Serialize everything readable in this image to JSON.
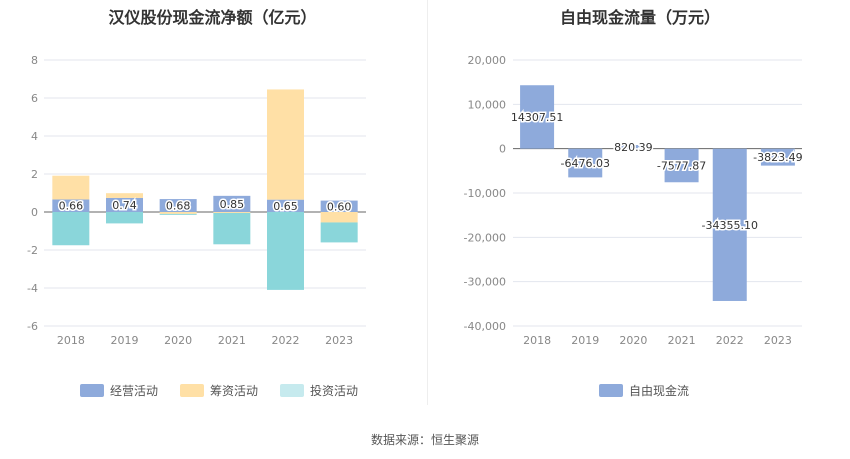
{
  "titles": {
    "left": "汉仪股份现金流净额（亿元）",
    "right": "自由现金流量（万元）"
  },
  "source": "数据来源：恒生聚源",
  "chart_data": [
    {
      "type": "bar",
      "stacked": true,
      "title": "汉仪股份现金流净额（亿元）",
      "categories": [
        "2018",
        "2019",
        "2020",
        "2021",
        "2022",
        "2023"
      ],
      "ylim": [
        -6,
        8
      ],
      "yticks": [
        -6,
        -4,
        -2,
        0,
        2,
        4,
        6,
        8
      ],
      "ytick_labels": [
        "-6",
        "-4",
        "-2",
        "0",
        "2",
        "4",
        "6",
        "8"
      ],
      "grid": true,
      "legend_position": "bottom",
      "series": [
        {
          "name": "经营活动",
          "color": "#8eaadb",
          "values": [
            0.66,
            0.74,
            0.68,
            0.85,
            0.65,
            0.6
          ],
          "labels": [
            "0.66",
            "0.74",
            "0.68",
            "0.85",
            "0.65",
            "0.60"
          ]
        },
        {
          "name": "筹资活动",
          "color": "#ffe0a6",
          "values": [
            1.25,
            0.25,
            -0.1,
            -0.05,
            5.8,
            -0.55
          ]
        },
        {
          "name": "投资活动",
          "color": "#8ad6da",
          "values": [
            -1.75,
            -0.6,
            -0.05,
            -1.65,
            -4.1,
            -1.05
          ]
        }
      ],
      "legend_swatches": [
        "#8eaadb",
        "#ffe0a6",
        "#c6eaee"
      ]
    },
    {
      "type": "bar",
      "title": "自由现金流量（万元）",
      "categories": [
        "2018",
        "2019",
        "2020",
        "2021",
        "2022",
        "2023"
      ],
      "ylim": [
        -40000,
        20000
      ],
      "yticks": [
        -40000,
        -30000,
        -20000,
        -10000,
        0,
        10000,
        20000
      ],
      "ytick_labels": [
        "-40,000",
        "-30,000",
        "-20,000",
        "-10,000",
        "0",
        "10,000",
        "20,000"
      ],
      "grid": true,
      "legend_position": "bottom",
      "series": [
        {
          "name": "自由现金流",
          "color": "#8eaadb",
          "values": [
            14307.51,
            -6476.03,
            820.39,
            -7577.87,
            -34355.1,
            -3823.49
          ],
          "labels": [
            "14307.51",
            "-6476.03",
            "820.39",
            "-7577.87",
            "-34355.10",
            "-3823.49"
          ]
        }
      ]
    }
  ]
}
